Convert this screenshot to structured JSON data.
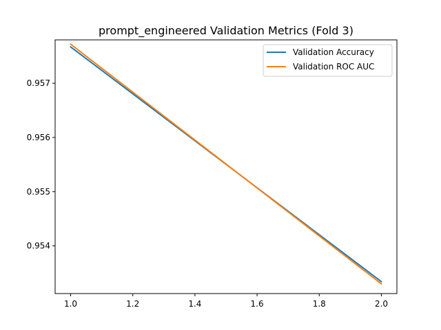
{
  "chart_data": {
    "type": "line",
    "title": "prompt_engineered Validation Metrics (Fold 3)",
    "xlabel": "",
    "ylabel": "",
    "xlim": [
      0.95,
      2.05
    ],
    "ylim": [
      0.95312,
      0.9578
    ],
    "x_ticks": [
      "1.0",
      "1.2",
      "1.4",
      "1.6",
      "1.8",
      "2.0"
    ],
    "y_ticks": [
      "0.954",
      "0.955",
      "0.956",
      "0.957"
    ],
    "grid": false,
    "legend_position": "top-right",
    "series": [
      {
        "name": "Validation Accuracy",
        "color": "#1f77b4",
        "x": [
          1.0,
          2.0
        ],
        "y": [
          0.95767,
          0.95334
        ]
      },
      {
        "name": "Validation ROC AUC",
        "color": "#ff7f0e",
        "x": [
          1.0,
          2.0
        ],
        "y": [
          0.95772,
          0.9533
        ]
      }
    ]
  }
}
